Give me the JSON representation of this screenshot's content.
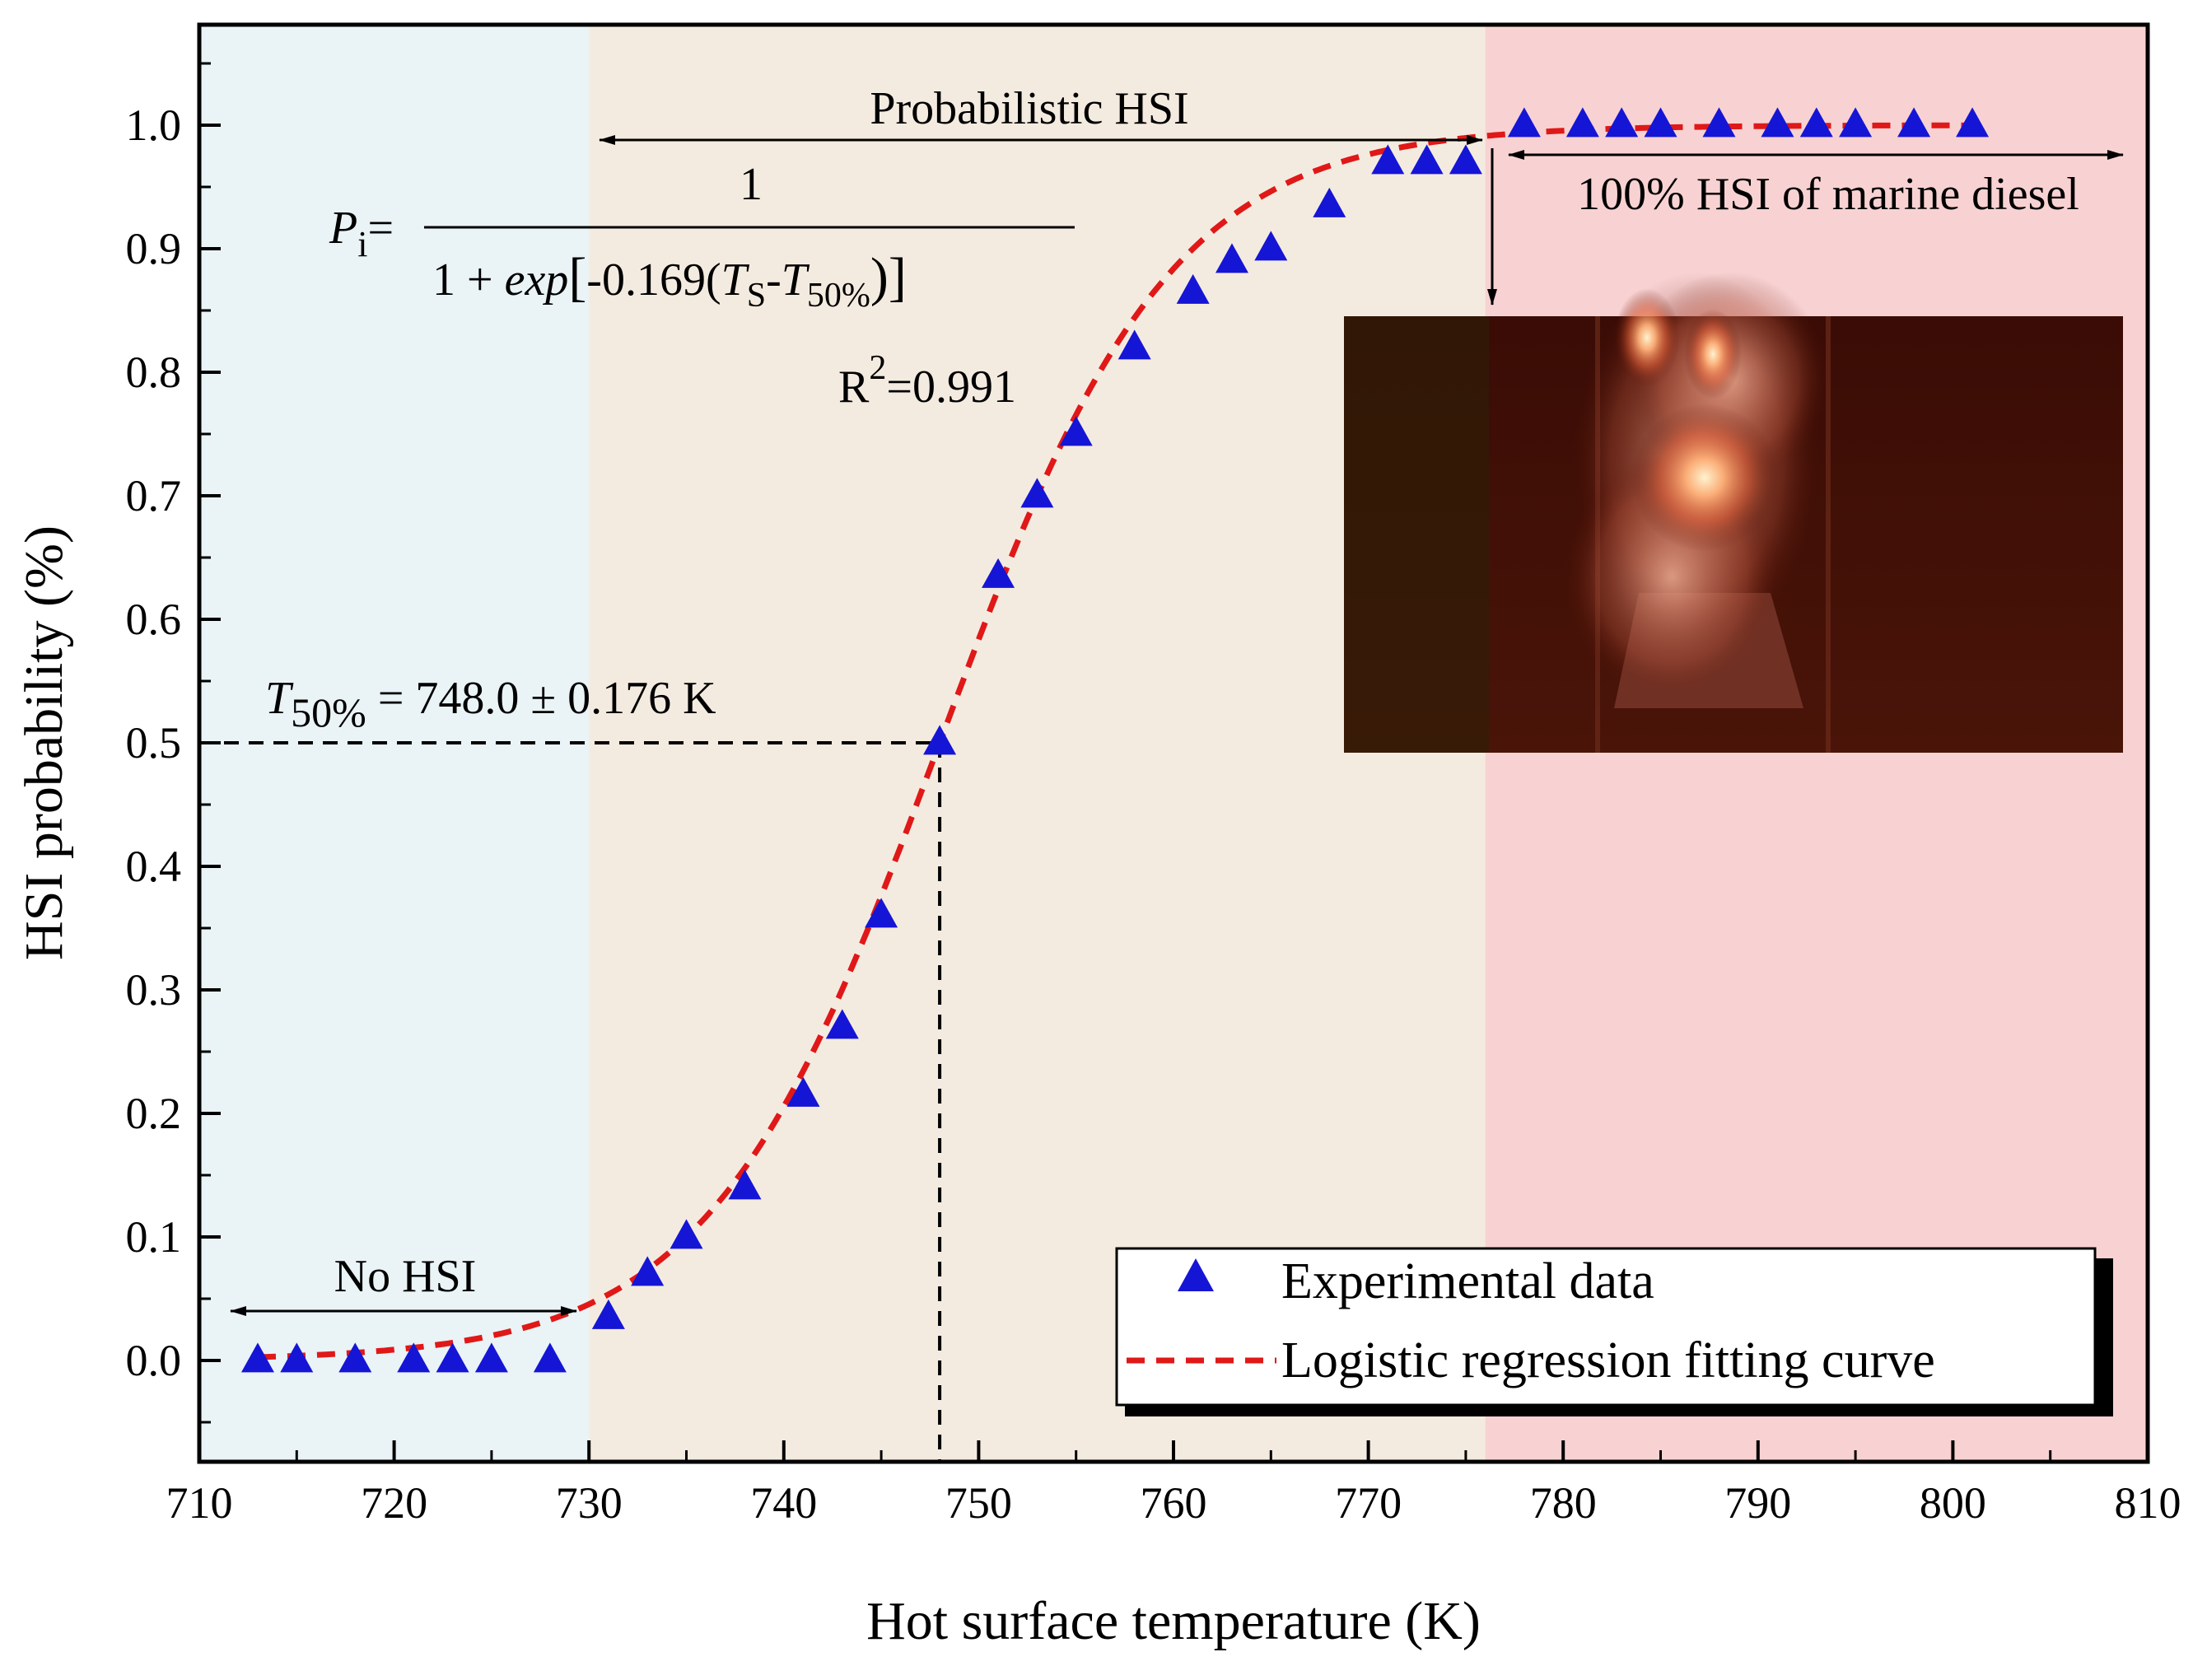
{
  "chart_data": {
    "type": "scatter",
    "title": "",
    "xlabel": "Hot surface temperature (K)",
    "ylabel": "HSI probability (%)",
    "xlim": [
      710,
      810
    ],
    "ylim": [
      -0.08,
      1.07
    ],
    "x_ticks": [
      710,
      720,
      730,
      740,
      750,
      760,
      770,
      780,
      790,
      800,
      810
    ],
    "y_ticks": [
      0.0,
      0.1,
      0.2,
      0.3,
      0.4,
      0.5,
      0.6,
      0.7,
      0.8,
      0.9,
      1.0
    ],
    "x_tick_labels": [
      "710",
      "720",
      "730",
      "740",
      "750",
      "760",
      "770",
      "780",
      "790",
      "800",
      "810"
    ],
    "y_tick_labels": [
      "0.0",
      "0.1",
      "0.2",
      "0.3",
      "0.4",
      "0.5",
      "0.6",
      "0.7",
      "0.8",
      "0.9",
      "1.0"
    ],
    "regions": [
      {
        "name": "No HSI",
        "x_range": [
          710,
          730
        ],
        "color": "#eaf3f6"
      },
      {
        "name": "Probabilistic HSI",
        "x_range": [
          730,
          776
        ],
        "color": "#f4ebe0"
      },
      {
        "name": "100% HSI of marine diesel",
        "x_range": [
          776,
          810
        ],
        "color": "#f8d2d2"
      }
    ],
    "series": [
      {
        "name": "Experimental data",
        "marker": "triangle",
        "color": "#1515d6",
        "x": [
          713,
          715,
          718,
          721,
          723,
          725,
          728,
          731,
          733,
          735,
          738,
          741,
          743,
          745,
          748,
          751,
          753,
          755,
          758,
          761,
          763,
          765,
          768,
          771,
          773,
          775,
          778,
          781,
          783,
          785,
          788,
          791,
          793,
          795,
          798,
          801
        ],
        "y": [
          0,
          0,
          0,
          0,
          0,
          0,
          0,
          0.035,
          0.07,
          0.1,
          0.14,
          0.215,
          0.27,
          0.36,
          0.5,
          0.635,
          0.7,
          0.75,
          0.82,
          0.865,
          0.89,
          0.9,
          0.935,
          0.97,
          0.97,
          0.97,
          1,
          1,
          1,
          1,
          1,
          1,
          1,
          1,
          1,
          1
        ]
      },
      {
        "name": "Logistic regression fitting curve",
        "type": "line",
        "style": "dashed",
        "color": "#e01818",
        "equation": {
          "k": 0.169,
          "t50": 748.0
        },
        "x_range": [
          713,
          801
        ]
      }
    ],
    "annotations": {
      "probabilistic_label": "Probabilistic HSI",
      "no_hsi_label": "No HSI",
      "full_hsi_label": "100% HSI of marine diesel",
      "eq_lhs_symbol": "P",
      "eq_lhs_sub": "i",
      "eq_equals": "=",
      "eq_numerator": "1",
      "eq_den_pre": "1 + ",
      "eq_den_exp": "exp",
      "eq_den_bracket_open": "[",
      "eq_den_coef": "-0.169(",
      "eq_den_ts": "T",
      "eq_den_ts_sub": "S",
      "eq_den_dash": "-",
      "eq_den_t50": "T",
      "eq_den_t50_sub": "50%",
      "eq_den_close": ")]",
      "r2_prefix": "R",
      "r2_sup": "2",
      "r2_value": "=0.991",
      "t50_symbol": "T",
      "t50_sub": "50%",
      "t50_value": " = 748.0 ± 0.176 K",
      "t50_x": 748.0,
      "t50_y": 0.5
    },
    "legend": {
      "position": "bottom-right",
      "entries": [
        "Experimental data",
        "Logistic regression fitting curve"
      ]
    },
    "inset_image": "flame-photo"
  }
}
